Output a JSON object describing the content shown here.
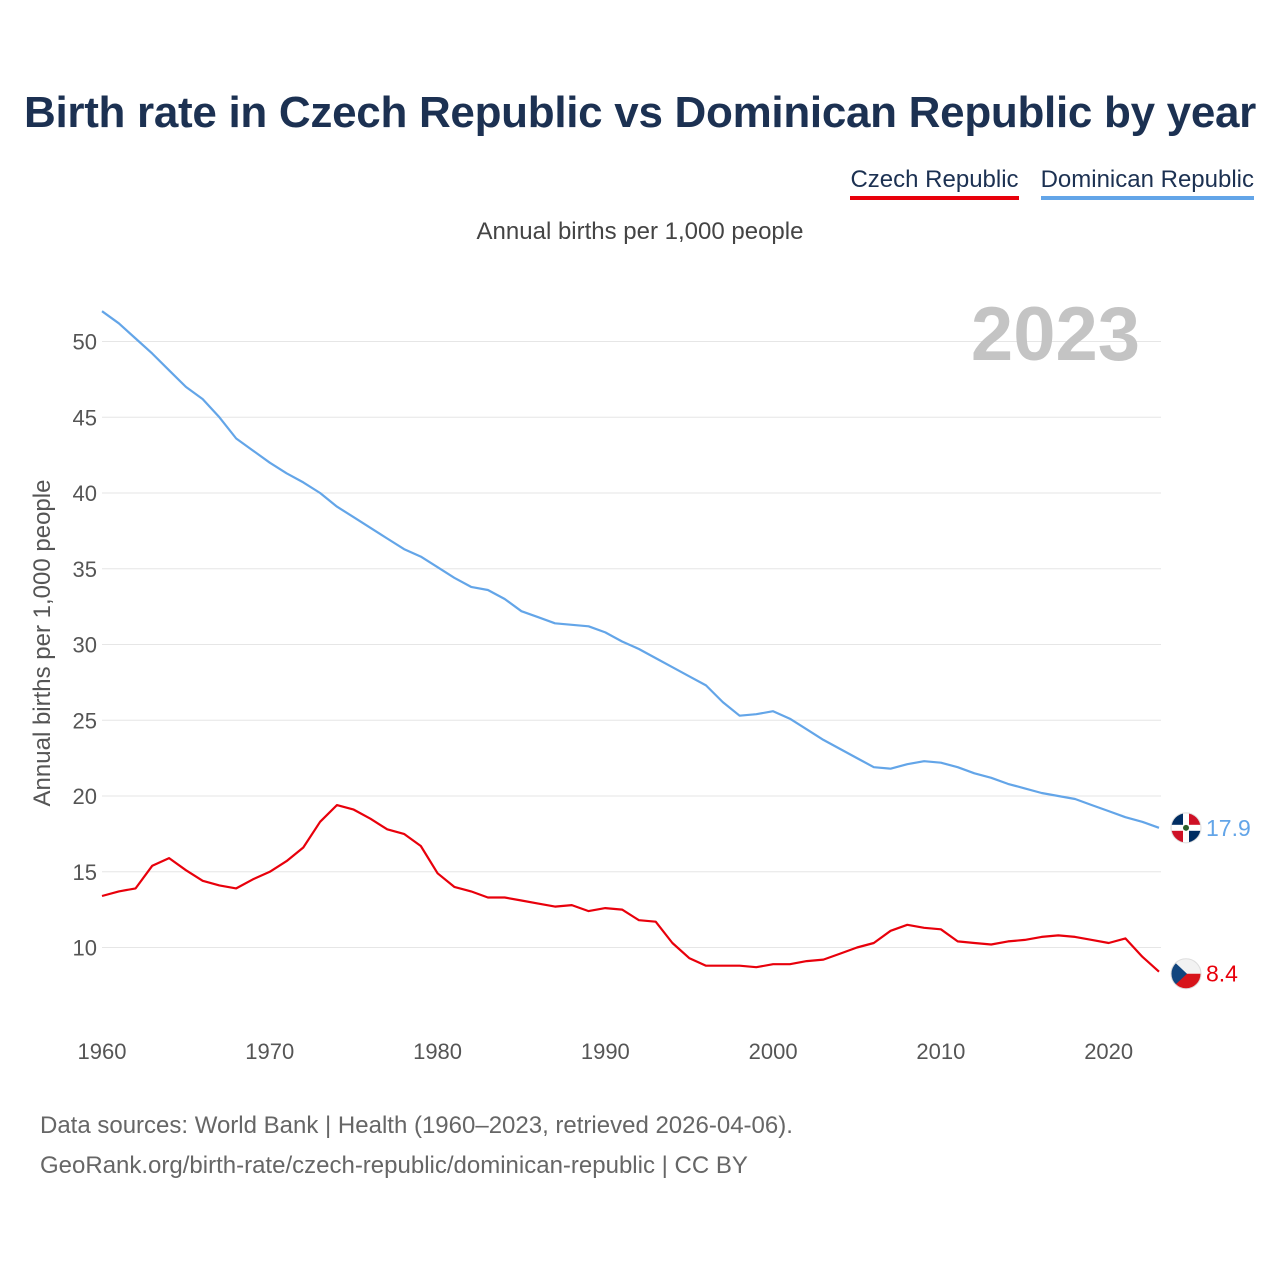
{
  "title": "Birth rate in Czech Republic vs Dominican Republic by year",
  "subtitle": "Annual births per 1,000 people",
  "legend": [
    {
      "label": "Czech Republic",
      "color": "#e8000b"
    },
    {
      "label": "Dominican Republic",
      "color": "#63a5e8"
    }
  ],
  "year_badge": "2023",
  "footer": {
    "line1": "Data sources: World Bank | Health (1960–2023, retrieved 2026-04-06).",
    "line2": "GeoRank.org/birth-rate/czech-republic/dominican-republic | CC BY"
  },
  "chart_data": {
    "type": "line",
    "title": "Birth rate in Czech Republic vs Dominican Republic by year",
    "ylabel": "Annual births per 1,000 people",
    "xlabel": "",
    "xlim": [
      1960,
      2023
    ],
    "ylim": [
      5.5,
      52
    ],
    "x_ticks": [
      1960,
      1970,
      1980,
      1990,
      2000,
      2010,
      2020
    ],
    "y_ticks": [
      10,
      15,
      20,
      25,
      30,
      35,
      40,
      45,
      50
    ],
    "grid": true,
    "years": [
      1960,
      1961,
      1962,
      1963,
      1964,
      1965,
      1966,
      1967,
      1968,
      1969,
      1970,
      1971,
      1972,
      1973,
      1974,
      1975,
      1976,
      1977,
      1978,
      1979,
      1980,
      1981,
      1982,
      1983,
      1984,
      1985,
      1986,
      1987,
      1988,
      1989,
      1990,
      1991,
      1992,
      1993,
      1994,
      1995,
      1996,
      1997,
      1998,
      1999,
      2000,
      2001,
      2002,
      2003,
      2004,
      2005,
      2006,
      2007,
      2008,
      2009,
      2010,
      2011,
      2012,
      2013,
      2014,
      2015,
      2016,
      2017,
      2018,
      2019,
      2020,
      2021,
      2022,
      2023
    ],
    "series": [
      {
        "name": "Dominican Republic",
        "color": "#63a5e8",
        "end_label": "17.9",
        "values": [
          52.0,
          51.2,
          50.2,
          49.2,
          48.1,
          47.0,
          46.2,
          45.0,
          43.6,
          42.8,
          42.0,
          41.3,
          40.7,
          40.0,
          39.1,
          38.4,
          37.7,
          37.0,
          36.3,
          35.8,
          35.1,
          34.4,
          33.8,
          33.6,
          33.0,
          32.2,
          31.8,
          31.4,
          31.3,
          31.2,
          30.8,
          30.2,
          29.7,
          29.1,
          28.5,
          27.9,
          27.3,
          26.2,
          25.3,
          25.4,
          25.6,
          25.1,
          24.4,
          23.7,
          23.1,
          22.5,
          21.9,
          21.8,
          22.1,
          22.3,
          22.2,
          21.9,
          21.5,
          21.2,
          20.8,
          20.5,
          20.2,
          20.0,
          19.8,
          19.4,
          19.0,
          18.6,
          18.3,
          17.9
        ]
      },
      {
        "name": "Czech Republic",
        "color": "#e8000b",
        "end_label": "8.4",
        "values": [
          13.4,
          13.7,
          13.9,
          15.4,
          15.9,
          15.1,
          14.4,
          14.1,
          13.9,
          14.5,
          15.0,
          15.7,
          16.6,
          18.3,
          19.4,
          19.1,
          18.5,
          17.8,
          17.5,
          16.7,
          14.9,
          14.0,
          13.7,
          13.3,
          13.3,
          13.1,
          12.9,
          12.7,
          12.8,
          12.4,
          12.6,
          12.5,
          11.8,
          11.7,
          10.3,
          9.3,
          8.8,
          8.8,
          8.8,
          8.7,
          8.9,
          8.9,
          9.1,
          9.2,
          9.6,
          10.0,
          10.3,
          11.1,
          11.5,
          11.3,
          11.2,
          10.4,
          10.3,
          10.2,
          10.4,
          10.5,
          10.7,
          10.8,
          10.7,
          10.5,
          10.3,
          10.6,
          9.4,
          8.4
        ]
      }
    ]
  }
}
